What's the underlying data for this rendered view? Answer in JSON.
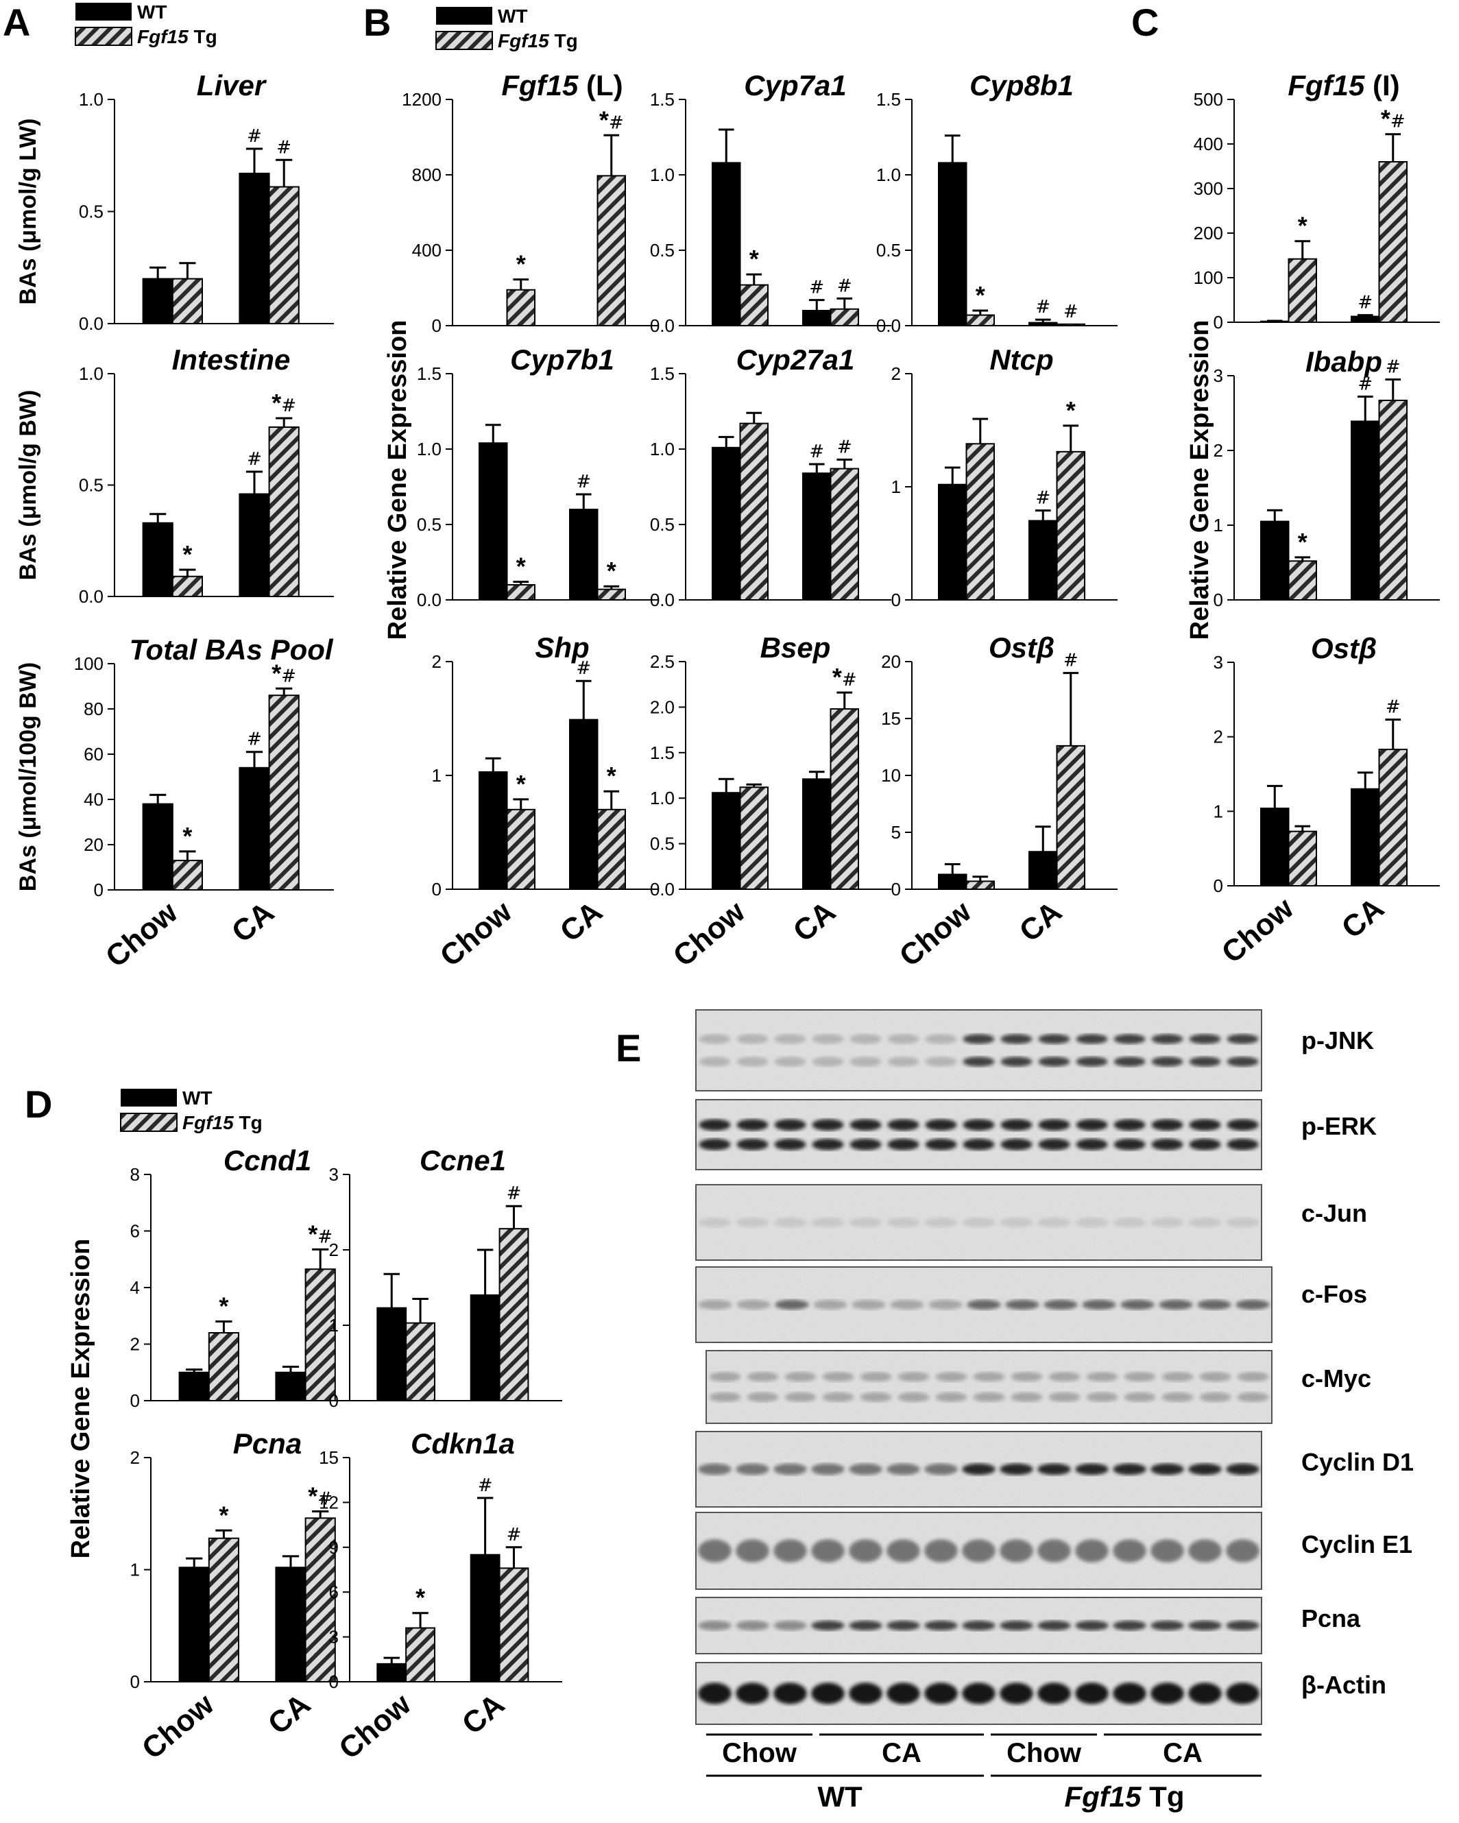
{
  "legend": {
    "wt": "WT",
    "tg_italic": "Fgf15",
    "tg_suffix": " Tg"
  },
  "groups": [
    "Chow",
    "CA"
  ],
  "panels": {
    "A": {
      "letter": "A"
    },
    "B": {
      "letter": "B",
      "ylabel": "Relative Gene Expression"
    },
    "C": {
      "letter": "C",
      "ylabel": "Relative Gene Expression"
    },
    "D": {
      "letter": "D",
      "ylabel": "Relative Gene Expression"
    },
    "E": {
      "letter": "E"
    }
  },
  "chart_data": [
    {
      "id": "A1",
      "panel": "A",
      "type": "bar",
      "title": "Liver",
      "title_suffix": "",
      "ylabel": "BAs (μmol/g LW)",
      "ylim": [
        0,
        1.0
      ],
      "ticks": [
        "0.0",
        "0.5",
        "1.0"
      ],
      "series": [
        {
          "name": "WT",
          "values": [
            0.2,
            0.67
          ],
          "errors": [
            0.05,
            0.11
          ],
          "marks": [
            "",
            "#"
          ]
        },
        {
          "name": "Fgf15 Tg",
          "values": [
            0.2,
            0.61
          ],
          "errors": [
            0.07,
            0.12
          ],
          "marks": [
            "",
            "#"
          ]
        }
      ]
    },
    {
      "id": "A2",
      "panel": "A",
      "type": "bar",
      "title": "Intestine",
      "title_suffix": "",
      "ylabel": "BAs (μmol/g BW)",
      "ylim": [
        0,
        1.0
      ],
      "ticks": [
        "0.0",
        "0.5",
        "1.0"
      ],
      "series": [
        {
          "name": "WT",
          "values": [
            0.33,
            0.46
          ],
          "errors": [
            0.04,
            0.1
          ],
          "marks": [
            "",
            "#"
          ]
        },
        {
          "name": "Fgf15 Tg",
          "values": [
            0.09,
            0.76
          ],
          "errors": [
            0.03,
            0.04
          ],
          "marks": [
            "*",
            "*#"
          ]
        }
      ]
    },
    {
      "id": "A3",
      "panel": "A",
      "type": "bar",
      "title": "Total BAs Pool",
      "title_suffix": "",
      "ylabel": "BAs (μmol/100g BW)",
      "ylim": [
        0,
        100
      ],
      "ticks": [
        "0",
        "20",
        "40",
        "60",
        "80",
        "100"
      ],
      "series": [
        {
          "name": "WT",
          "values": [
            38,
            54
          ],
          "errors": [
            4,
            7
          ],
          "marks": [
            "",
            "#"
          ]
        },
        {
          "name": "Fgf15 Tg",
          "values": [
            13,
            86
          ],
          "errors": [
            4,
            3
          ],
          "marks": [
            "*",
            "*#"
          ]
        }
      ],
      "xaxis": true
    },
    {
      "id": "B1",
      "panel": "B",
      "type": "bar",
      "title": "Fgf15",
      "title_suffix": " (L)",
      "ylim": [
        0,
        1200
      ],
      "ticks": [
        "0",
        "400",
        "800",
        "1200"
      ],
      "series": [
        {
          "name": "WT",
          "values": [
            0,
            0
          ],
          "errors": [
            0,
            0
          ],
          "marks": [
            "",
            ""
          ]
        },
        {
          "name": "Fgf15 Tg",
          "values": [
            190,
            795
          ],
          "errors": [
            55,
            215
          ],
          "marks": [
            "*",
            "*#"
          ]
        }
      ]
    },
    {
      "id": "B2",
      "panel": "B",
      "type": "bar",
      "title": "Cyp7a1",
      "title_suffix": "",
      "ylim": [
        0,
        1.5
      ],
      "ticks": [
        "0.0",
        "0.5",
        "1.0",
        "1.5"
      ],
      "series": [
        {
          "name": "WT",
          "values": [
            1.08,
            0.1
          ],
          "errors": [
            0.22,
            0.07
          ],
          "marks": [
            "",
            "#"
          ]
        },
        {
          "name": "Fgf15 Tg",
          "values": [
            0.27,
            0.11
          ],
          "errors": [
            0.07,
            0.07
          ],
          "marks": [
            "*",
            "#"
          ]
        }
      ]
    },
    {
      "id": "B3",
      "panel": "B",
      "type": "bar",
      "title": "Cyp8b1",
      "title_suffix": "",
      "ylim": [
        0,
        1.5
      ],
      "ticks": [
        "0.0",
        "0.5",
        "1.0",
        "1.5"
      ],
      "series": [
        {
          "name": "WT",
          "values": [
            1.08,
            0.02
          ],
          "errors": [
            0.18,
            0.02
          ],
          "marks": [
            "",
            "#"
          ]
        },
        {
          "name": "Fgf15 Tg",
          "values": [
            0.07,
            0.01
          ],
          "errors": [
            0.03,
            0.0
          ],
          "marks": [
            "*",
            "#"
          ]
        }
      ]
    },
    {
      "id": "B4",
      "panel": "B",
      "type": "bar",
      "title": "Cyp7b1",
      "title_suffix": "",
      "ylim": [
        0,
        1.5
      ],
      "ticks": [
        "0.0",
        "0.5",
        "1.0",
        "1.5"
      ],
      "series": [
        {
          "name": "WT",
          "values": [
            1.04,
            0.6
          ],
          "errors": [
            0.12,
            0.1
          ],
          "marks": [
            "",
            "#"
          ]
        },
        {
          "name": "Fgf15 Tg",
          "values": [
            0.1,
            0.07
          ],
          "errors": [
            0.02,
            0.02
          ],
          "marks": [
            "*",
            "*"
          ]
        }
      ]
    },
    {
      "id": "B5",
      "panel": "B",
      "type": "bar",
      "title": "Cyp27a1",
      "title_suffix": "",
      "ylim": [
        0,
        1.5
      ],
      "ticks": [
        "0.0",
        "0.5",
        "1.0",
        "1.5"
      ],
      "series": [
        {
          "name": "WT",
          "values": [
            1.01,
            0.84
          ],
          "errors": [
            0.07,
            0.06
          ],
          "marks": [
            "",
            "#"
          ]
        },
        {
          "name": "Fgf15 Tg",
          "values": [
            1.17,
            0.87
          ],
          "errors": [
            0.07,
            0.06
          ],
          "marks": [
            "",
            "#"
          ]
        }
      ]
    },
    {
      "id": "B6",
      "panel": "B",
      "type": "bar",
      "title": "Ntcp",
      "title_suffix": "",
      "ylim": [
        0,
        2
      ],
      "ticks": [
        "0",
        "1",
        "2"
      ],
      "series": [
        {
          "name": "WT",
          "values": [
            1.02,
            0.7
          ],
          "errors": [
            0.15,
            0.09
          ],
          "marks": [
            "",
            "#"
          ]
        },
        {
          "name": "Fgf15 Tg",
          "values": [
            1.38,
            1.31
          ],
          "errors": [
            0.22,
            0.23
          ],
          "marks": [
            "",
            "*"
          ]
        }
      ]
    },
    {
      "id": "B7",
      "panel": "B",
      "type": "bar",
      "title": "Shp",
      "title_suffix": "",
      "ylim": [
        0,
        2
      ],
      "ticks": [
        "0",
        "1",
        "2"
      ],
      "series": [
        {
          "name": "WT",
          "values": [
            1.03,
            1.49
          ],
          "errors": [
            0.12,
            0.34
          ],
          "marks": [
            "",
            "#"
          ]
        },
        {
          "name": "Fgf15 Tg",
          "values": [
            0.7,
            0.7
          ],
          "errors": [
            0.09,
            0.16
          ],
          "marks": [
            "*",
            "*"
          ]
        }
      ],
      "xaxis": true
    },
    {
      "id": "B8",
      "panel": "B",
      "type": "bar",
      "title": "Bsep",
      "title_suffix": "",
      "ylim": [
        0,
        2.5
      ],
      "ticks": [
        "0.0",
        "0.5",
        "1.0",
        "1.5",
        "2.0",
        "2.5"
      ],
      "series": [
        {
          "name": "WT",
          "values": [
            1.06,
            1.21
          ],
          "errors": [
            0.15,
            0.08
          ],
          "marks": [
            "",
            ""
          ]
        },
        {
          "name": "Fgf15 Tg",
          "values": [
            1.12,
            1.98
          ],
          "errors": [
            0.03,
            0.18
          ],
          "marks": [
            "",
            "*#"
          ]
        }
      ],
      "xaxis": true
    },
    {
      "id": "B9",
      "panel": "B",
      "type": "bar",
      "title": "Ost",
      "title_suffix": "β",
      "ylim": [
        0,
        20
      ],
      "ticks": [
        "0",
        "5",
        "10",
        "15",
        "20"
      ],
      "series": [
        {
          "name": "WT",
          "values": [
            1.3,
            3.3
          ],
          "errors": [
            0.9,
            2.2
          ],
          "marks": [
            "",
            ""
          ]
        },
        {
          "name": "Fgf15 Tg",
          "values": [
            0.7,
            12.6
          ],
          "errors": [
            0.4,
            6.4
          ],
          "marks": [
            "",
            "#"
          ]
        }
      ],
      "xaxis": true
    },
    {
      "id": "C1",
      "panel": "C",
      "type": "bar",
      "title": "Fgf15",
      "title_suffix": " (I)",
      "ylim": [
        0,
        500
      ],
      "ticks": [
        "0",
        "100",
        "200",
        "300",
        "400",
        "500"
      ],
      "series": [
        {
          "name": "WT",
          "values": [
            2,
            13
          ],
          "errors": [
            1,
            3
          ],
          "marks": [
            "",
            "#"
          ]
        },
        {
          "name": "Fgf15 Tg",
          "values": [
            142,
            360
          ],
          "errors": [
            40,
            62
          ],
          "marks": [
            "*",
            "*#"
          ]
        }
      ]
    },
    {
      "id": "C2",
      "panel": "C",
      "type": "bar",
      "title": "Ibabp",
      "title_suffix": "",
      "ylim": [
        0,
        3
      ],
      "ticks": [
        "0",
        "1",
        "2",
        "3"
      ],
      "series": [
        {
          "name": "WT",
          "values": [
            1.05,
            2.39
          ],
          "errors": [
            0.15,
            0.33
          ],
          "marks": [
            "",
            "#"
          ]
        },
        {
          "name": "Fgf15 Tg",
          "values": [
            0.52,
            2.67
          ],
          "errors": [
            0.05,
            0.28
          ],
          "marks": [
            "*",
            "#"
          ]
        }
      ]
    },
    {
      "id": "C3",
      "panel": "C",
      "type": "bar",
      "title": "Ost",
      "title_suffix": "β",
      "ylim": [
        0,
        3
      ],
      "ticks": [
        "0",
        "1",
        "2",
        "3"
      ],
      "series": [
        {
          "name": "WT",
          "values": [
            1.04,
            1.3
          ],
          "errors": [
            0.3,
            0.22
          ],
          "marks": [
            "",
            ""
          ]
        },
        {
          "name": "Fgf15 Tg",
          "values": [
            0.73,
            1.83
          ],
          "errors": [
            0.07,
            0.4
          ],
          "marks": [
            "",
            "#"
          ]
        }
      ],
      "xaxis": true
    },
    {
      "id": "D1",
      "panel": "D",
      "type": "bar",
      "title": "Ccnd1",
      "title_suffix": "",
      "ylim": [
        0,
        8
      ],
      "ticks": [
        "0",
        "2",
        "4",
        "6",
        "8"
      ],
      "series": [
        {
          "name": "WT",
          "values": [
            1.0,
            1.0
          ],
          "errors": [
            0.1,
            0.2
          ],
          "marks": [
            "",
            ""
          ]
        },
        {
          "name": "Fgf15 Tg",
          "values": [
            2.4,
            4.65
          ],
          "errors": [
            0.4,
            0.7
          ],
          "marks": [
            "*",
            "*#"
          ]
        }
      ]
    },
    {
      "id": "D2",
      "panel": "D",
      "type": "bar",
      "title": "Ccne1",
      "title_suffix": "",
      "ylim": [
        0,
        3
      ],
      "ticks": [
        "0",
        "1",
        "2",
        "3"
      ],
      "series": [
        {
          "name": "WT",
          "values": [
            1.23,
            1.4
          ],
          "errors": [
            0.45,
            0.6
          ],
          "marks": [
            "",
            ""
          ]
        },
        {
          "name": "Fgf15 Tg",
          "values": [
            1.03,
            2.28
          ],
          "errors": [
            0.32,
            0.3
          ],
          "marks": [
            "",
            "#"
          ]
        }
      ]
    },
    {
      "id": "D3",
      "panel": "D",
      "type": "bar",
      "title": "Pcna",
      "title_suffix": "",
      "ylim": [
        0,
        2
      ],
      "ticks": [
        "0",
        "1",
        "2"
      ],
      "series": [
        {
          "name": "WT",
          "values": [
            1.02,
            1.02
          ],
          "errors": [
            0.08,
            0.1
          ],
          "marks": [
            "",
            ""
          ]
        },
        {
          "name": "Fgf15 Tg",
          "values": [
            1.28,
            1.46
          ],
          "errors": [
            0.07,
            0.06
          ],
          "marks": [
            "*",
            "*#"
          ]
        }
      ],
      "xaxis": true
    },
    {
      "id": "D4",
      "panel": "D",
      "type": "bar",
      "title": "Cdkn1a",
      "title_suffix": "",
      "ylim": [
        0,
        15
      ],
      "ticks": [
        "0",
        "3",
        "6",
        "9",
        "12",
        "15"
      ],
      "series": [
        {
          "name": "WT",
          "values": [
            1.2,
            8.5
          ],
          "errors": [
            0.4,
            3.8
          ],
          "marks": [
            "",
            "#"
          ]
        },
        {
          "name": "Fgf15 Tg",
          "values": [
            3.6,
            7.6
          ],
          "errors": [
            1.0,
            1.4
          ],
          "marks": [
            "*",
            "#"
          ]
        }
      ],
      "xaxis": true
    }
  ],
  "blot": {
    "labels": [
      "p-JNK",
      "p-ERK",
      "c-Jun",
      "c-Fos",
      "c-Myc",
      "Cyclin D1",
      "Cyclin E1",
      "Pcna",
      "β-Actin"
    ],
    "bottom_groups": [
      "Chow",
      "CA",
      "Chow",
      "CA"
    ],
    "wt_label": "WT",
    "tg_italic": "Fgf15",
    "tg_suffix": " Tg"
  }
}
